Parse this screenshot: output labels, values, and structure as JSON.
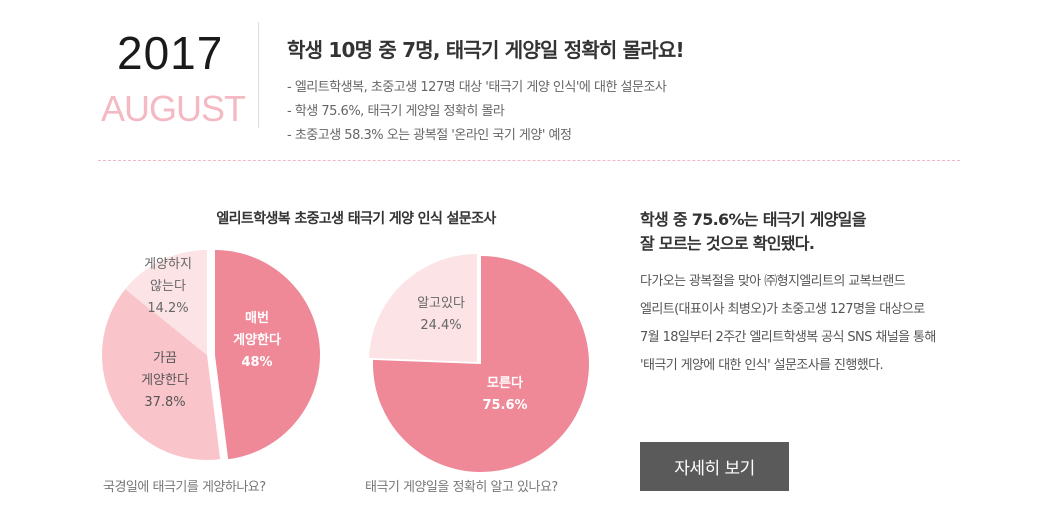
{
  "header": {
    "year": "2017",
    "month": "AUGUST",
    "headline": "학생 10명 중 7명, 태극기 게양일 정확히 몰라요!",
    "bullets": [
      "- 엘리트학생복, 초중고생 127명 대상 '태극기 게양 인식'에 대한 설문조사",
      "- 학생 75.6%, 태극기 게양일 정확히 몰라",
      "- 초중고생 58.3% 오는 광복절 '온라인 국기 게양' 예정"
    ]
  },
  "chart_title": "엘리트학생복 초중고생 태극기 게양 인식 설문조사",
  "chart_data": [
    {
      "type": "pie",
      "question": "국경일에 태극기를 게양하나요?",
      "slices": [
        {
          "label_lines": [
            "매번",
            "게양한다"
          ],
          "value_text": "48%",
          "value": 48,
          "color": "#ef8897"
        },
        {
          "label_lines": [
            "가끔",
            "게양한다"
          ],
          "value_text": "37.8%",
          "value": 37.8,
          "color": "#fac4cb"
        },
        {
          "label_lines": [
            "게양하지",
            "않는다"
          ],
          "value_text": "14.2%",
          "value": 14.2,
          "color": "#fbe3e6"
        }
      ]
    },
    {
      "type": "pie",
      "question": "태극기 게양일을 정확히 알고 있나요?",
      "slices": [
        {
          "label_lines": [
            "모른다"
          ],
          "value_text": "75.6%",
          "value": 75.6,
          "color": "#ef8897"
        },
        {
          "label_lines": [
            "알고있다"
          ],
          "value_text": "24.4%",
          "value": 24.4,
          "color": "#fbe3e6"
        }
      ]
    }
  ],
  "right": {
    "title_lines": [
      "학생 중 75.6%는 태극기 게양일을",
      "잘 모르는 것으로 확인됐다."
    ],
    "body_lines": [
      "다가오는 광복절을 맞아 ㈜형지엘리트의 교복브랜드",
      "엘리트(대표이사 최병오)가 초중고생 127명을 대상으로",
      "7월 18일부터 2주간 엘리트학생복 공식 SNS 채널을 통해",
      "'태극기 게양에 대한 인식' 설문조사를 진행했다."
    ],
    "button_label": "자세히 보기"
  }
}
